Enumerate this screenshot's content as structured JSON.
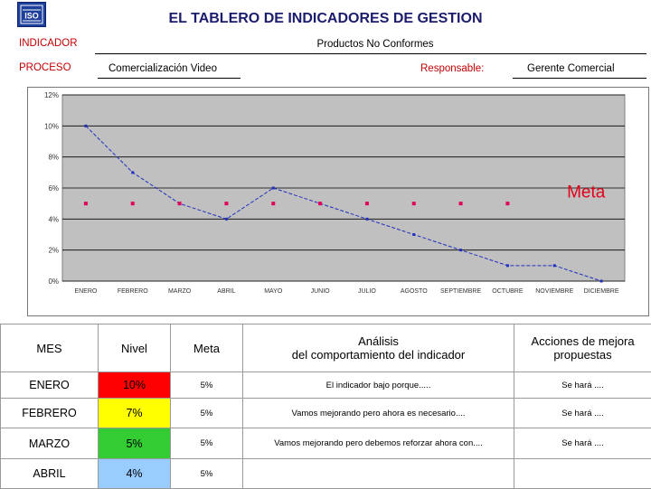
{
  "title": "EL TABLERO DE INDICADORES DE GESTION",
  "logo_text": "ISO",
  "header": {
    "indicador_label": "INDICADOR",
    "indicador_value": "Productos No Conformes",
    "proceso_label": "PROCESO",
    "proceso_value": "Comercialización Video",
    "responsable_label": "Responsable:",
    "responsable_value": "Gerente Comercial"
  },
  "colors": {
    "plot_bg": "#c0c0c0",
    "nivel_line": "#1f2fbf",
    "meta_points": "#e0005a",
    "meta_label": "#e0001a",
    "level_red": "#ff0000",
    "level_yellow": "#ffff00",
    "level_green": "#33cc33",
    "level_blue": "#99ccff"
  },
  "chart_data": {
    "type": "line",
    "categories": [
      "ENERO",
      "FEBRERO",
      "MARZO",
      "ABRIL",
      "MAYO",
      "JUNIO",
      "JULIO",
      "AGOSTO",
      "SEPTIEMBRE",
      "OCTUBRE",
      "NOVIEMBRE",
      "DICIEMBRE"
    ],
    "yticks": [
      "0%",
      "2%",
      "4%",
      "6%",
      "8%",
      "10%",
      "12%"
    ],
    "ylim": [
      0,
      12
    ],
    "grid": true,
    "series": [
      {
        "values": [
          10,
          7,
          5,
          4,
          6,
          5,
          4,
          3,
          2,
          1,
          1,
          0
        ],
        "style": "line"
      },
      {
        "values": [
          5,
          5,
          5,
          5,
          5,
          5,
          5,
          5,
          5,
          5,
          null,
          null
        ],
        "style": "points"
      }
    ],
    "annotations": [
      {
        "text": "Meta",
        "x": "DICIEMBRE",
        "y": 5.5
      }
    ]
  },
  "table": {
    "headers": {
      "mes": "MES",
      "nivel": "Nivel",
      "meta": "Meta",
      "analisis_1": "Análisis",
      "analisis_2": "del comportamiento del indicador",
      "acciones_1": "Acciones de mejora",
      "acciones_2": "propuestas"
    },
    "rows": [
      {
        "mes": "ENERO",
        "nivel": "10%",
        "nivel_color": "#ff0000",
        "meta": "5%",
        "analisis": "El indicador bajo porque.....",
        "acciones": "Se hará ...."
      },
      {
        "mes": "FEBRERO",
        "nivel": "7%",
        "nivel_color": "#ffff00",
        "meta": "5%",
        "analisis": "Vamos mejorando pero ahora es necesario....",
        "acciones": "Se hará ...."
      },
      {
        "mes": "MARZO",
        "nivel": "5%",
        "nivel_color": "#33cc33",
        "meta": "5%",
        "analisis": "Vamos mejorando pero debemos reforzar ahora con....",
        "acciones": "Se hará ...."
      },
      {
        "mes": "ABRIL",
        "nivel": "4%",
        "nivel_color": "#99ccff",
        "meta": "5%",
        "analisis": "",
        "acciones": ""
      }
    ]
  }
}
